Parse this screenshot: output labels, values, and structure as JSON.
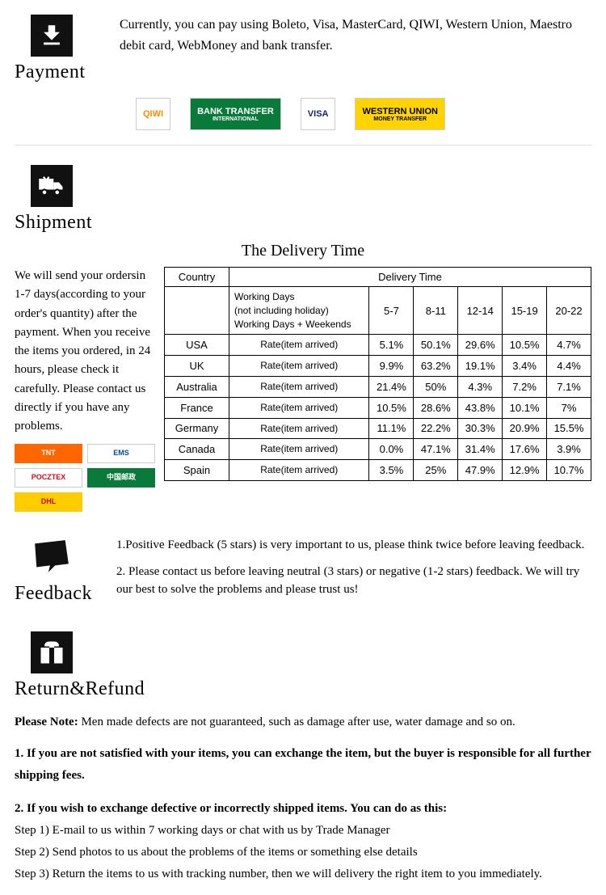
{
  "payment": {
    "title": "Payment",
    "desc": "Currently, you can pay using Boleto, Visa, MasterCard, QIWI, Western Union, Maestro  debit card, WebMoney and bank transfer.",
    "logos": [
      {
        "label": "QIWI",
        "bg": "#fff",
        "fg": "#ff8c00"
      },
      {
        "label": "BANK TRANSFER",
        "sub": "INTERNATIONAL",
        "bg": "#0a7a3a",
        "fg": "#fff"
      },
      {
        "label": "VISA",
        "bg": "#fff",
        "fg": "#1a1f71"
      },
      {
        "label": "WESTERN UNION",
        "sub": "MONEY TRANSFER",
        "bg": "#ffd400",
        "fg": "#000"
      }
    ]
  },
  "shipment": {
    "title": "Shipment",
    "table_title": "The Delivery Time",
    "left_text": "We will send your ordersin 1-7 days(according to your order's quantity) after the payment. When you receive  the items you ordered, in 24  hours, please check it carefully. Please  contact us directly if you have any problems.",
    "table": {
      "header_country": "Country",
      "header_delivery": "Delivery Time",
      "wd_line1": "Working Days",
      "wd_line2": "(not including holiday)",
      "wd_line3": "Working Days + Weekends",
      "ranges": [
        "5-7",
        "8-11",
        "12-14",
        "15-19",
        "20-22"
      ],
      "rate_label": "Rate(item arrived)",
      "rows": [
        {
          "country": "USA",
          "vals": [
            "5.1%",
            "50.1%",
            "29.6%",
            "10.5%",
            "4.7%"
          ]
        },
        {
          "country": "UK",
          "vals": [
            "9.9%",
            "63.2%",
            "19.1%",
            "3.4%",
            "4.4%"
          ]
        },
        {
          "country": "Australia",
          "vals": [
            "21.4%",
            "50%",
            "4.3%",
            "7.2%",
            "7.1%"
          ]
        },
        {
          "country": "France",
          "vals": [
            "10.5%",
            "28.6%",
            "43.8%",
            "10.1%",
            "7%"
          ]
        },
        {
          "country": "Germany",
          "vals": [
            "11.1%",
            "22.2%",
            "30.3%",
            "20.9%",
            "15.5%"
          ]
        },
        {
          "country": "Canada",
          "vals": [
            "0.0%",
            "47.1%",
            "31.4%",
            "17.6%",
            "3.9%"
          ]
        },
        {
          "country": "Spain",
          "vals": [
            "3.5%",
            "25%",
            "47.9%",
            "12.9%",
            "10.7%"
          ]
        }
      ]
    },
    "carriers": [
      {
        "label": "TNT",
        "bg": "#ff6600"
      },
      {
        "label": "EMS",
        "bg": "#fff",
        "fg": "#004b9b"
      },
      {
        "label": "POCZTEX",
        "bg": "#fff",
        "fg": "#e30613"
      },
      {
        "label": "中国邮政",
        "bg": "#0a7a3a"
      },
      {
        "label": "DHL",
        "bg": "#ffcc00",
        "fg": "#d40511"
      }
    ]
  },
  "feedback": {
    "title": "Feedback",
    "line1": "1.Positive Feedback (5 stars) is very important to us, please think twice before leaving feedback.",
    "line2": "2. Please contact us before leaving neutral (3 stars) or negative  (1-2 stars) feedback. We will try our best to solve the problems and please trust us!"
  },
  "return": {
    "title": "Return&Refund",
    "note_label": "Please Note:",
    "note_text": " Men made defects are not guaranteed, such as damage after use, water damage and so on.",
    "p1": "1. If you are not satisfied with your items, you can exchange the item, but the buyer is responsible for all further shipping fees.",
    "p2": "2. If you wish to exchange defective or incorrectly shipped items. You can do as this:",
    "step1": " Step 1) E-mail to us within 7 working days or chat with us by Trade Manager",
    "step2": " Step 2) Send photos to us about the problems of the items or something else details",
    "step3": " Step 3) Return the items to us with tracking number, then we will delivery the right item to you immediately."
  }
}
